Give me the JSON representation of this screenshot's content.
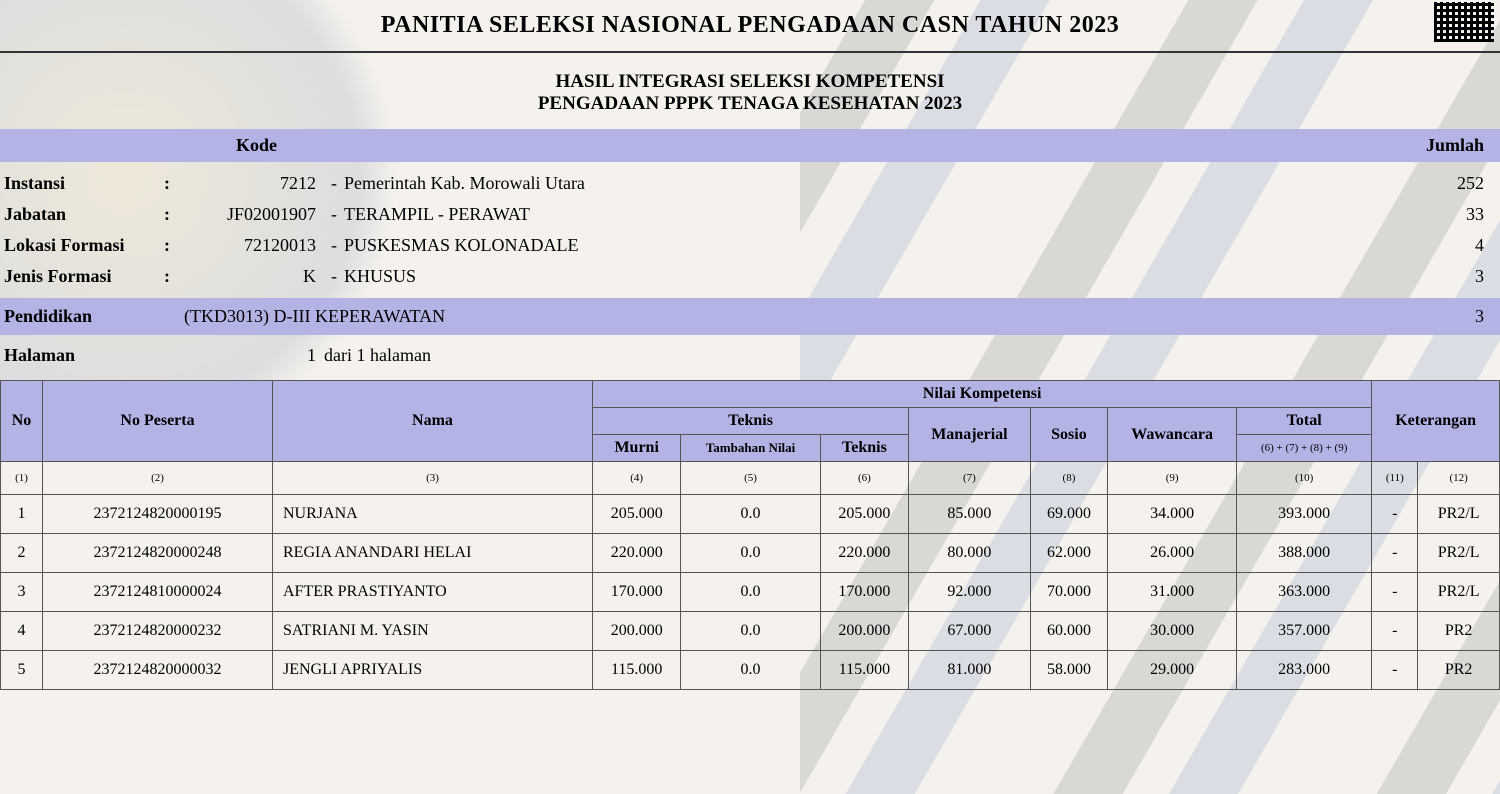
{
  "title": "PANITIA SELEKSI NASIONAL PENGADAAN CASN TAHUN 2023",
  "subtitle1": "HASIL INTEGRASI SELEKSI KOMPETENSI",
  "subtitle2": "PENGADAAN PPPK TENAGA KESEHATAN 2023",
  "band": {
    "kode": "Kode",
    "jumlah": "Jumlah"
  },
  "info": {
    "instansi": {
      "label": "Instansi",
      "code": "7212",
      "desc": "Pemerintah Kab. Morowali Utara",
      "count": "252"
    },
    "jabatan": {
      "label": "Jabatan",
      "code": "JF02001907",
      "desc": "TERAMPIL - PERAWAT",
      "count": "33"
    },
    "lokasi": {
      "label": "Lokasi Formasi",
      "code": "72120013",
      "desc": "PUSKESMAS KOLONADALE",
      "count": "4"
    },
    "jenis": {
      "label": "Jenis Formasi",
      "code": "K",
      "desc": "KHUSUS",
      "count": "3"
    }
  },
  "pendidikan": {
    "label": "Pendidikan",
    "value": "(TKD3013) D-III KEPERAWATAN",
    "count": "3"
  },
  "halaman": {
    "label": "Halaman",
    "num": "1",
    "rest": "dari 1 halaman"
  },
  "columns": {
    "no": "No",
    "peserta": "No Peserta",
    "nama": "Nama",
    "nilai_kompetensi": "Nilai Kompetensi",
    "teknis": "Teknis",
    "murni": "Murni",
    "tambahan": "Tambahan Nilai",
    "teknis2": "Teknis",
    "manajerial": "Manajerial",
    "sosio": "Sosio",
    "wawancara": "Wawancara",
    "total": "Total",
    "total_formula": "(6) + (7) + (8) + (9)",
    "keterangan": "Keterangan"
  },
  "colnums": [
    "(1)",
    "(2)",
    "(3)",
    "(4)",
    "(5)",
    "(6)",
    "(7)",
    "(8)",
    "(9)",
    "(10)",
    "(11)",
    "(12)"
  ],
  "rows": [
    {
      "no": "1",
      "peserta": "2372124820000195",
      "nama": "NURJANA",
      "murni": "205.000",
      "tambah": "0.0",
      "teknis": "205.000",
      "manaj": "85.000",
      "sosio": "69.000",
      "waw": "34.000",
      "total": "393.000",
      "ket1": "-",
      "ket2": "PR2/L"
    },
    {
      "no": "2",
      "peserta": "2372124820000248",
      "nama": "REGIA ANANDARI HELAI",
      "murni": "220.000",
      "tambah": "0.0",
      "teknis": "220.000",
      "manaj": "80.000",
      "sosio": "62.000",
      "waw": "26.000",
      "total": "388.000",
      "ket1": "-",
      "ket2": "PR2/L"
    },
    {
      "no": "3",
      "peserta": "2372124810000024",
      "nama": "AFTER PRASTIYANTO",
      "murni": "170.000",
      "tambah": "0.0",
      "teknis": "170.000",
      "manaj": "92.000",
      "sosio": "70.000",
      "waw": "31.000",
      "total": "363.000",
      "ket1": "-",
      "ket2": "PR2/L"
    },
    {
      "no": "4",
      "peserta": "2372124820000232",
      "nama": "SATRIANI M. YASIN",
      "murni": "200.000",
      "tambah": "0.0",
      "teknis": "200.000",
      "manaj": "67.000",
      "sosio": "60.000",
      "waw": "30.000",
      "total": "357.000",
      "ket1": "-",
      "ket2": "PR2"
    },
    {
      "no": "5",
      "peserta": "2372124820000032",
      "nama": "JENGLI APRIYALIS",
      "murni": "115.000",
      "tambah": "0.0",
      "teknis": "115.000",
      "manaj": "81.000",
      "sosio": "58.000",
      "waw": "29.000",
      "total": "283.000",
      "ket1": "-",
      "ket2": "PR2"
    }
  ],
  "colors": {
    "band_bg": "#b3b3e6",
    "border": "#555555",
    "page_bg": "#f5f2ed"
  }
}
